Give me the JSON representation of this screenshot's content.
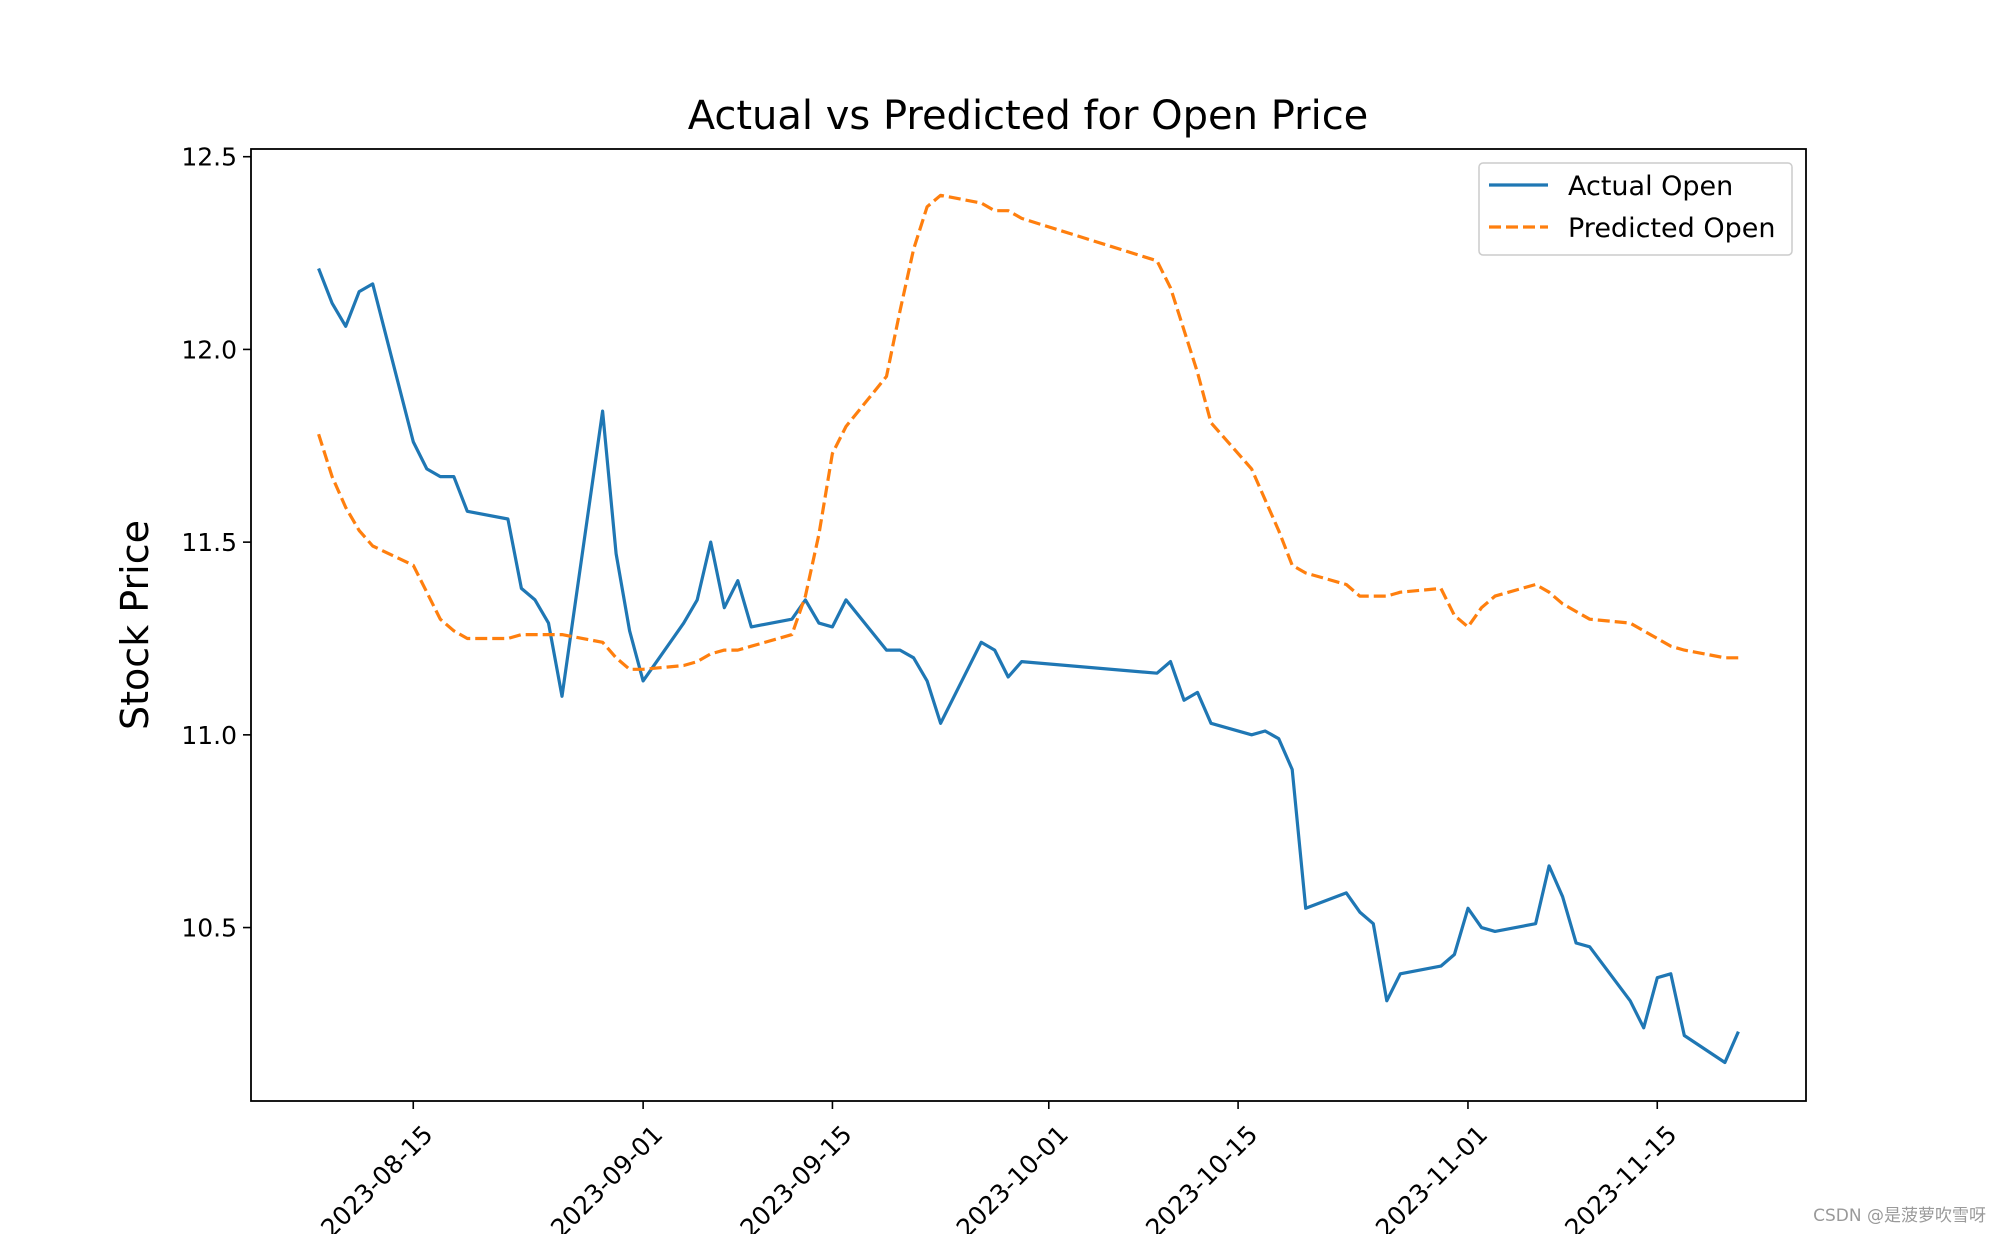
{
  "chart_data": {
    "type": "line",
    "title": "Actual vs Predicted for Open Price",
    "xlabel": "",
    "ylabel": "Stock Price",
    "ylim": [
      10.05,
      12.52
    ],
    "xlim": [
      "2023-08-03",
      "2023-11-26"
    ],
    "yticks": [
      "10.5",
      "11.0",
      "11.5",
      "12.0",
      "12.5"
    ],
    "xticks": [
      "2023-08-15",
      "2023-09-01",
      "2023-09-15",
      "2023-10-01",
      "2023-10-15",
      "2023-11-01",
      "2023-11-15"
    ],
    "grid": false,
    "legend_position": "top-right",
    "series": [
      {
        "name": "Actual Open",
        "color": "#1f77b4",
        "style": "solid",
        "points": [
          [
            "2023-08-08",
            12.21
          ],
          [
            "2023-08-09",
            12.12
          ],
          [
            "2023-08-10",
            12.06
          ],
          [
            "2023-08-11",
            12.15
          ],
          [
            "2023-08-12",
            12.17
          ],
          [
            "2023-08-15",
            11.76
          ],
          [
            "2023-08-16",
            11.69
          ],
          [
            "2023-08-17",
            11.67
          ],
          [
            "2023-08-18",
            11.67
          ],
          [
            "2023-08-19",
            11.58
          ],
          [
            "2023-08-22",
            11.56
          ],
          [
            "2023-08-23",
            11.38
          ],
          [
            "2023-08-24",
            11.35
          ],
          [
            "2023-08-25",
            11.29
          ],
          [
            "2023-08-26",
            11.1
          ],
          [
            "2023-08-29",
            11.84
          ],
          [
            "2023-08-30",
            11.47
          ],
          [
            "2023-08-31",
            11.27
          ],
          [
            "2023-09-01",
            11.14
          ],
          [
            "2023-09-04",
            11.29
          ],
          [
            "2023-09-05",
            11.35
          ],
          [
            "2023-09-06",
            11.5
          ],
          [
            "2023-09-07",
            11.33
          ],
          [
            "2023-09-08",
            11.4
          ],
          [
            "2023-09-09",
            11.28
          ],
          [
            "2023-09-12",
            11.3
          ],
          [
            "2023-09-13",
            11.35
          ],
          [
            "2023-09-14",
            11.29
          ],
          [
            "2023-09-15",
            11.28
          ],
          [
            "2023-09-16",
            11.35
          ],
          [
            "2023-09-19",
            11.22
          ],
          [
            "2023-09-20",
            11.22
          ],
          [
            "2023-09-21",
            11.2
          ],
          [
            "2023-09-22",
            11.14
          ],
          [
            "2023-09-23",
            11.03
          ],
          [
            "2023-09-26",
            11.24
          ],
          [
            "2023-09-27",
            11.22
          ],
          [
            "2023-09-28",
            11.15
          ],
          [
            "2023-09-29",
            11.19
          ],
          [
            "2023-10-09",
            11.16
          ],
          [
            "2023-10-10",
            11.19
          ],
          [
            "2023-10-11",
            11.09
          ],
          [
            "2023-10-12",
            11.11
          ],
          [
            "2023-10-13",
            11.03
          ],
          [
            "2023-10-16",
            11.0
          ],
          [
            "2023-10-17",
            11.01
          ],
          [
            "2023-10-18",
            10.99
          ],
          [
            "2023-10-19",
            10.91
          ],
          [
            "2023-10-20",
            10.55
          ],
          [
            "2023-10-23",
            10.59
          ],
          [
            "2023-10-24",
            10.54
          ],
          [
            "2023-10-25",
            10.51
          ],
          [
            "2023-10-26",
            10.31
          ],
          [
            "2023-10-27",
            10.38
          ],
          [
            "2023-10-30",
            10.4
          ],
          [
            "2023-10-31",
            10.43
          ],
          [
            "2023-11-01",
            10.55
          ],
          [
            "2023-11-02",
            10.5
          ],
          [
            "2023-11-03",
            10.49
          ],
          [
            "2023-11-06",
            10.51
          ],
          [
            "2023-11-07",
            10.66
          ],
          [
            "2023-11-08",
            10.58
          ],
          [
            "2023-11-09",
            10.46
          ],
          [
            "2023-11-10",
            10.45
          ],
          [
            "2023-11-13",
            10.31
          ],
          [
            "2023-11-14",
            10.24
          ],
          [
            "2023-11-15",
            10.37
          ],
          [
            "2023-11-16",
            10.38
          ],
          [
            "2023-11-17",
            10.22
          ],
          [
            "2023-11-20",
            10.15
          ],
          [
            "2023-11-21",
            10.23
          ]
        ]
      },
      {
        "name": "Predicted Open",
        "color": "#ff7f0e",
        "style": "dashed",
        "points": [
          [
            "2023-08-08",
            11.78
          ],
          [
            "2023-08-09",
            11.67
          ],
          [
            "2023-08-10",
            11.59
          ],
          [
            "2023-08-11",
            11.53
          ],
          [
            "2023-08-12",
            11.49
          ],
          [
            "2023-08-15",
            11.44
          ],
          [
            "2023-08-16",
            11.37
          ],
          [
            "2023-08-17",
            11.3
          ],
          [
            "2023-08-18",
            11.27
          ],
          [
            "2023-08-19",
            11.25
          ],
          [
            "2023-08-22",
            11.25
          ],
          [
            "2023-08-23",
            11.26
          ],
          [
            "2023-08-24",
            11.26
          ],
          [
            "2023-08-25",
            11.26
          ],
          [
            "2023-08-26",
            11.26
          ],
          [
            "2023-08-29",
            11.24
          ],
          [
            "2023-08-30",
            11.2
          ],
          [
            "2023-08-31",
            11.17
          ],
          [
            "2023-09-01",
            11.17
          ],
          [
            "2023-09-04",
            11.18
          ],
          [
            "2023-09-05",
            11.19
          ],
          [
            "2023-09-06",
            11.21
          ],
          [
            "2023-09-07",
            11.22
          ],
          [
            "2023-09-08",
            11.22
          ],
          [
            "2023-09-09",
            11.23
          ],
          [
            "2023-09-12",
            11.26
          ],
          [
            "2023-09-13",
            11.36
          ],
          [
            "2023-09-14",
            11.52
          ],
          [
            "2023-09-15",
            11.73
          ],
          [
            "2023-09-16",
            11.8
          ],
          [
            "2023-09-19",
            11.93
          ],
          [
            "2023-09-20",
            12.1
          ],
          [
            "2023-09-21",
            12.26
          ],
          [
            "2023-09-22",
            12.37
          ],
          [
            "2023-09-23",
            12.4
          ],
          [
            "2023-09-26",
            12.38
          ],
          [
            "2023-09-27",
            12.36
          ],
          [
            "2023-09-28",
            12.36
          ],
          [
            "2023-09-29",
            12.34
          ],
          [
            "2023-10-09",
            12.23
          ],
          [
            "2023-10-10",
            12.16
          ],
          [
            "2023-10-11",
            12.05
          ],
          [
            "2023-10-12",
            11.94
          ],
          [
            "2023-10-13",
            11.81
          ],
          [
            "2023-10-16",
            11.69
          ],
          [
            "2023-10-17",
            11.61
          ],
          [
            "2023-10-18",
            11.53
          ],
          [
            "2023-10-19",
            11.44
          ],
          [
            "2023-10-20",
            11.42
          ],
          [
            "2023-10-23",
            11.39
          ],
          [
            "2023-10-24",
            11.36
          ],
          [
            "2023-10-25",
            11.36
          ],
          [
            "2023-10-26",
            11.36
          ],
          [
            "2023-10-27",
            11.37
          ],
          [
            "2023-10-30",
            11.38
          ],
          [
            "2023-10-31",
            11.31
          ],
          [
            "2023-11-01",
            11.28
          ],
          [
            "2023-11-02",
            11.33
          ],
          [
            "2023-11-03",
            11.36
          ],
          [
            "2023-11-06",
            11.39
          ],
          [
            "2023-11-07",
            11.37
          ],
          [
            "2023-11-08",
            11.34
          ],
          [
            "2023-11-09",
            11.32
          ],
          [
            "2023-11-10",
            11.3
          ],
          [
            "2023-11-13",
            11.29
          ],
          [
            "2023-11-14",
            11.27
          ],
          [
            "2023-11-15",
            11.25
          ],
          [
            "2023-11-16",
            11.23
          ],
          [
            "2023-11-17",
            11.22
          ],
          [
            "2023-11-20",
            11.2
          ],
          [
            "2023-11-21",
            11.2
          ]
        ]
      }
    ]
  },
  "watermark": "CSDN @是菠萝吹雪呀"
}
